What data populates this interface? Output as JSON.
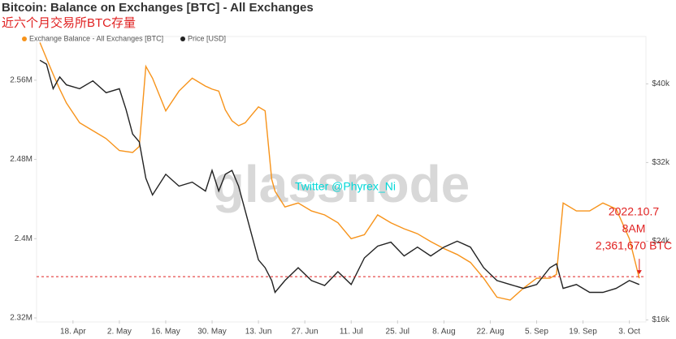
{
  "chart_data": {
    "type": "line",
    "title": "Bitcoin: Balance on Exchanges [BTC] - All Exchanges",
    "subtitle": "近六个月交易所BTC存量",
    "watermark": "glassnode",
    "credit": "Twitter @Phyrex_Ni",
    "legend": "top-left",
    "x": [
      -10,
      -8,
      -6,
      -4,
      -2,
      2,
      6,
      10,
      14,
      16,
      18,
      20,
      22,
      24,
      28,
      32,
      36,
      40,
      42,
      44,
      46,
      48,
      50,
      52,
      54,
      56,
      58,
      60,
      61,
      64,
      68,
      72,
      76,
      80,
      84,
      88,
      92,
      96,
      100,
      104,
      108,
      112,
      116,
      120,
      124,
      128,
      132,
      136,
      140,
      144,
      146,
      148,
      152,
      156,
      160,
      164,
      168,
      171
    ],
    "xlim": [
      -11,
      173
    ],
    "xticks": [
      {
        "value": 0,
        "label": "18. Apr"
      },
      {
        "value": 14,
        "label": "2. May"
      },
      {
        "value": 28,
        "label": "16. May"
      },
      {
        "value": 42,
        "label": "30. May"
      },
      {
        "value": 56,
        "label": "13. Jun"
      },
      {
        "value": 70,
        "label": "27. Jun"
      },
      {
        "value": 84,
        "label": "11. Jul"
      },
      {
        "value": 98,
        "label": "25. Jul"
      },
      {
        "value": 112,
        "label": "8. Aug"
      },
      {
        "value": 126,
        "label": "22. Aug"
      },
      {
        "value": 140,
        "label": "5. Sep"
      },
      {
        "value": 154,
        "label": "19. Sep"
      },
      {
        "value": 168,
        "label": "3. Oct"
      }
    ],
    "ylim": [
      2320000,
      2600000
    ],
    "yticks": [
      {
        "value": 2320000,
        "label": "2.32M"
      },
      {
        "value": 2400000,
        "label": "2.4M"
      },
      {
        "value": 2480000,
        "label": "2.48M"
      },
      {
        "value": 2560000,
        "label": "2.56M"
      }
    ],
    "y2lim": [
      16200,
      44400
    ],
    "y2ticks": [
      {
        "value": 16000,
        "label": "$16k"
      },
      {
        "value": 24000,
        "label": "$24k"
      },
      {
        "value": 32000,
        "label": "$32k"
      },
      {
        "value": 40000,
        "label": "$40k"
      }
    ],
    "series": [
      {
        "name": "Exchange Balance - All Exchanges [BTC]",
        "color": "#f7931a",
        "values": [
          2598000,
          2582000,
          2566000,
          2551000,
          2537000,
          2517000,
          2509000,
          2501000,
          2489000,
          2488000,
          2487000,
          2493000,
          2574000,
          2562000,
          2529000,
          2549000,
          2562000,
          2554000,
          2551000,
          2549000,
          2530000,
          2519000,
          2514000,
          2517000,
          2525000,
          2533000,
          2529000,
          2460000,
          2448000,
          2432000,
          2436000,
          2428000,
          2424000,
          2416000,
          2400000,
          2404000,
          2424000,
          2416000,
          2410000,
          2405000,
          2397000,
          2390000,
          2384000,
          2376000,
          2360000,
          2341000,
          2338000,
          2350000,
          2360000,
          2360000,
          2364000,
          2436000,
          2428000,
          2428000,
          2436000,
          2430000,
          2400000,
          2360000
        ]
      },
      {
        "name": "Price [USD]",
        "color": "#222222",
        "axis": "y2",
        "values": [
          42400,
          42000,
          39500,
          40700,
          39900,
          39500,
          40300,
          39100,
          39500,
          37400,
          34900,
          34100,
          30400,
          28700,
          30800,
          29600,
          30000,
          29100,
          31200,
          29100,
          30800,
          31200,
          29600,
          27100,
          24600,
          22100,
          21300,
          20000,
          18800,
          20000,
          21300,
          20000,
          19500,
          20900,
          19600,
          22300,
          23500,
          23900,
          22500,
          23400,
          22500,
          23400,
          24000,
          23400,
          21300,
          20000,
          19600,
          19200,
          19600,
          21300,
          21700,
          19200,
          19600,
          18800,
          18800,
          19200,
          20000,
          19600
        ]
      }
    ],
    "annotation": {
      "lines": [
        "2022.10.7",
        "8AM",
        "2,361,670 BTC"
      ],
      "value": 2361670,
      "color": "#e02020"
    }
  }
}
